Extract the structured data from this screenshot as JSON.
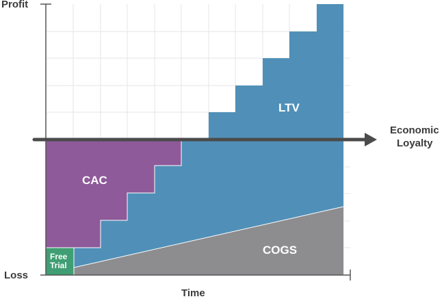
{
  "chart_data": {
    "type": "area",
    "title": "",
    "axes": {
      "y_top_label": "Profit",
      "y_bottom_label": "Loss",
      "x_label": "Time",
      "arrow_label_line1": "Economic",
      "arrow_label_line2": "Loyalty"
    },
    "regions": {
      "ltv": "LTV",
      "cac": "CAC",
      "cogs": "COGS",
      "free_trial_line1": "Free",
      "free_trial_line2": "Trial"
    }
  },
  "colors": {
    "ltv": "#5090b8",
    "cac": "#8e5a9a",
    "cogs": "#8d8d90",
    "free_trial": "#3f9e73",
    "axis": "#555555",
    "grid": "#e6e6e6",
    "arrow": "#4b4b4b",
    "text": "#3a3a3a"
  }
}
